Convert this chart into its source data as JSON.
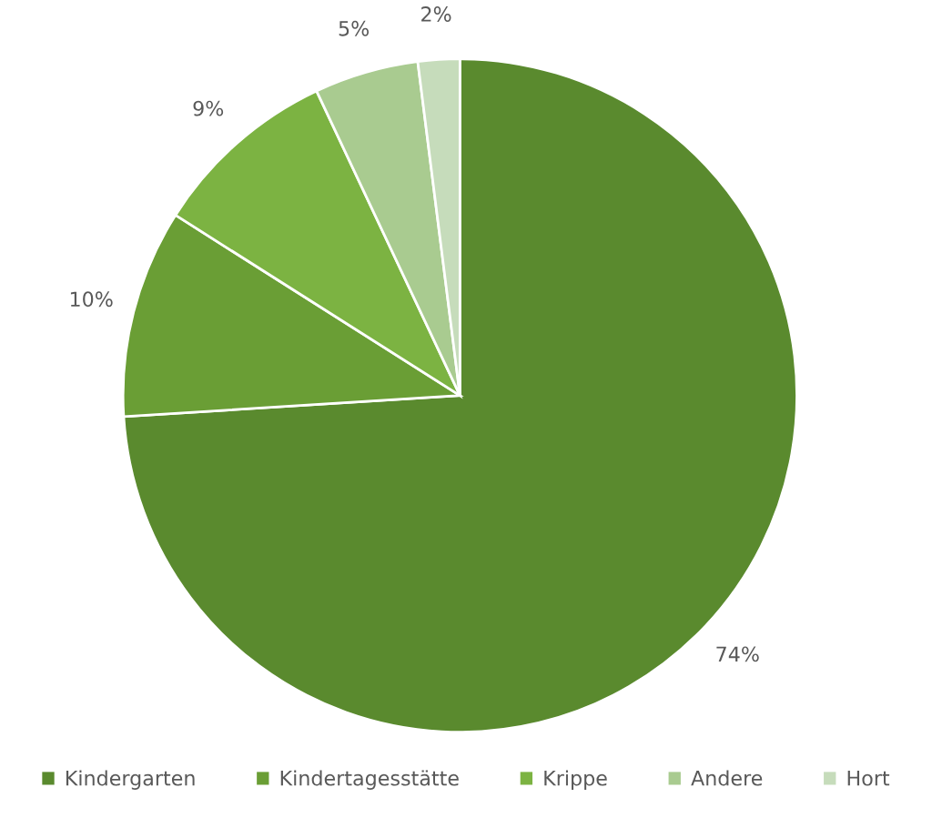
{
  "chart_data": {
    "type": "pie",
    "categories": [
      "Kindergarten",
      "Kindertagesstätte",
      "Krippe",
      "Andere",
      "Hort"
    ],
    "values": [
      74,
      10,
      9,
      5,
      2
    ],
    "colors": [
      "#5a8a2e",
      "#6a9e35",
      "#7cb342",
      "#a9cb90",
      "#c6dcbb"
    ],
    "value_labels": [
      "74%",
      "10%",
      "9%",
      "5%",
      "2%"
    ],
    "legend": "bottom"
  }
}
